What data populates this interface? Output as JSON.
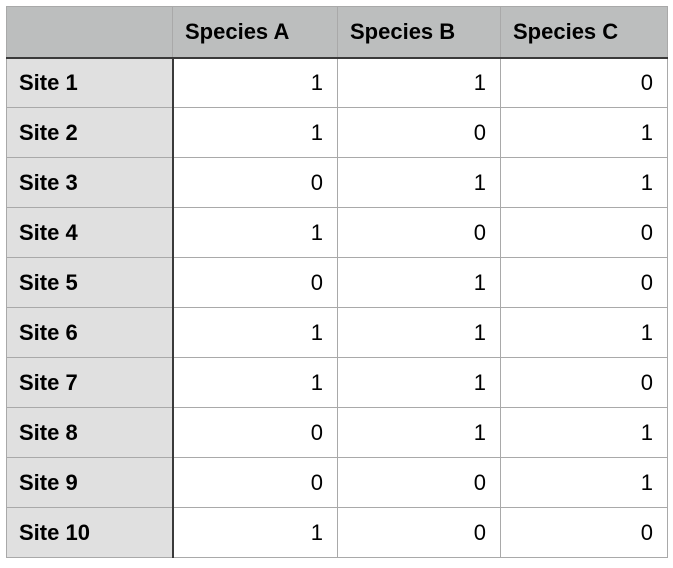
{
  "chart_data": {
    "type": "table",
    "title": "",
    "corner_label": "",
    "columns": [
      "Species A",
      "Species B",
      "Species C"
    ],
    "row_labels": [
      "Site 1",
      "Site 2",
      "Site 3",
      "Site 4",
      "Site 5",
      "Site 6",
      "Site 7",
      "Site 8",
      "Site 9",
      "Site 10"
    ],
    "values": [
      [
        1,
        1,
        0
      ],
      [
        1,
        0,
        1
      ],
      [
        0,
        1,
        1
      ],
      [
        1,
        0,
        0
      ],
      [
        0,
        1,
        0
      ],
      [
        1,
        1,
        1
      ],
      [
        1,
        1,
        0
      ],
      [
        0,
        1,
        1
      ],
      [
        0,
        0,
        1
      ],
      [
        1,
        0,
        0
      ]
    ]
  },
  "table": {
    "corner_label": "",
    "columns": [
      "Species A",
      "Species B",
      "Species C"
    ],
    "rows": [
      {
        "label": "Site 1",
        "values": [
          "1",
          "1",
          "0"
        ]
      },
      {
        "label": "Site 2",
        "values": [
          "1",
          "0",
          "1"
        ]
      },
      {
        "label": "Site 3",
        "values": [
          "0",
          "1",
          "1"
        ]
      },
      {
        "label": "Site 4",
        "values": [
          "1",
          "0",
          "0"
        ]
      },
      {
        "label": "Site 5",
        "values": [
          "0",
          "1",
          "0"
        ]
      },
      {
        "label": "Site 6",
        "values": [
          "1",
          "1",
          "1"
        ]
      },
      {
        "label": "Site 7",
        "values": [
          "1",
          "1",
          "0"
        ]
      },
      {
        "label": "Site 8",
        "values": [
          "0",
          "1",
          "1"
        ]
      },
      {
        "label": "Site 9",
        "values": [
          "0",
          "0",
          "1"
        ]
      },
      {
        "label": "Site 10",
        "values": [
          "1",
          "0",
          "0"
        ]
      }
    ]
  },
  "colors": {
    "header_bg": "#bcbebe",
    "row_label_bg": "#e0e0e0",
    "cell_bg": "#ffffff",
    "grid_line": "#a9a9a9",
    "heavy_rule": "#3a3a3a",
    "text": "#000000"
  }
}
